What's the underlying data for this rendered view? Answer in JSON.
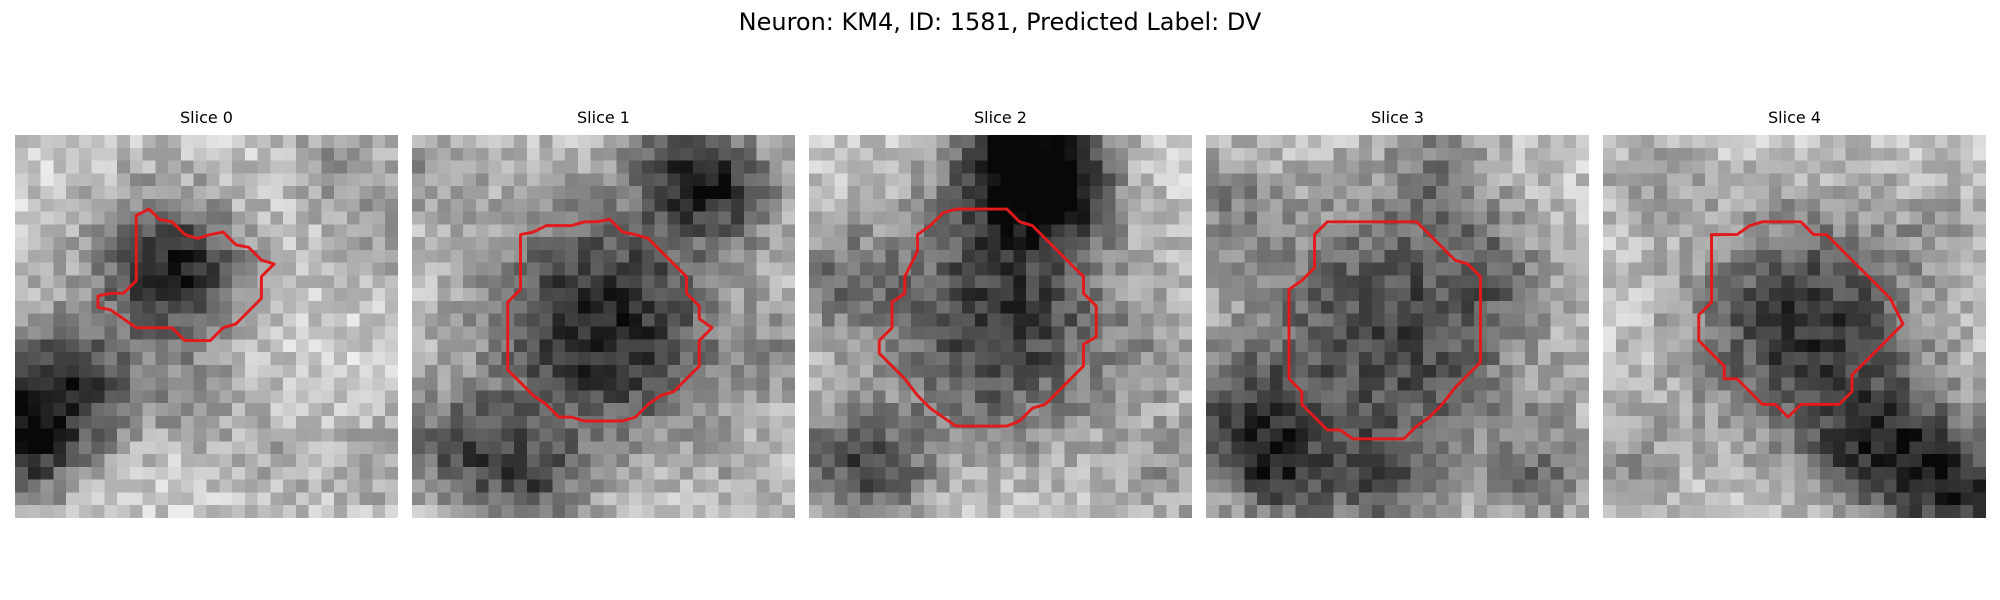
{
  "figure": {
    "title": "Neuron: KM4, ID: 1581, Predicted Label: DV",
    "contour_color": "#e31a1c",
    "colormap": "gray"
  },
  "panels": [
    {
      "title": "Slice 0",
      "contour": [
        [
          9.5,
          6.3
        ],
        [
          10.5,
          5.8
        ],
        [
          11.3,
          6.6
        ],
        [
          12.3,
          6.8
        ],
        [
          13.3,
          7.8
        ],
        [
          14.3,
          8.1
        ],
        [
          15.3,
          7.8
        ],
        [
          16.3,
          7.6
        ],
        [
          17.3,
          8.6
        ],
        [
          18.3,
          8.8
        ],
        [
          19.3,
          9.8
        ],
        [
          20.3,
          10.1
        ],
        [
          19.3,
          11.1
        ],
        [
          19.3,
          12.8
        ],
        [
          18.3,
          13.8
        ],
        [
          17.3,
          14.8
        ],
        [
          16.3,
          15.1
        ],
        [
          15.3,
          16.1
        ],
        [
          14.3,
          16.1
        ],
        [
          13.3,
          16.1
        ],
        [
          12.3,
          15.1
        ],
        [
          11.3,
          15.1
        ],
        [
          9.5,
          15.1
        ],
        [
          8.5,
          14.4
        ],
        [
          7.5,
          13.7
        ],
        [
          6.5,
          13.5
        ],
        [
          6.5,
          12.6
        ],
        [
          7.5,
          12.4
        ],
        [
          8.5,
          12.4
        ],
        [
          9.5,
          11.4
        ],
        [
          9.5,
          9.0
        ]
      ]
    },
    {
      "title": "Slice 1",
      "contour": [
        [
          8.5,
          7.8
        ],
        [
          9.5,
          7.6
        ],
        [
          10.5,
          7.1
        ],
        [
          12.5,
          7.1
        ],
        [
          13.5,
          6.8
        ],
        [
          14.5,
          6.8
        ],
        [
          15.5,
          6.6
        ],
        [
          16.5,
          7.6
        ],
        [
          17.5,
          7.8
        ],
        [
          18.5,
          8.1
        ],
        [
          19.5,
          9.1
        ],
        [
          20.5,
          10.1
        ],
        [
          21.5,
          11.1
        ],
        [
          21.5,
          12.4
        ],
        [
          22.5,
          13.4
        ],
        [
          22.5,
          14.4
        ],
        [
          23.5,
          15.1
        ],
        [
          22.5,
          16.1
        ],
        [
          22.5,
          18.1
        ],
        [
          21.5,
          19.1
        ],
        [
          20.5,
          20.1
        ],
        [
          19.5,
          20.4
        ],
        [
          18.5,
          21.1
        ],
        [
          17.5,
          22.1
        ],
        [
          16.5,
          22.4
        ],
        [
          13.5,
          22.4
        ],
        [
          12.5,
          22.1
        ],
        [
          11.5,
          22.1
        ],
        [
          10.5,
          21.1
        ],
        [
          9.5,
          20.4
        ],
        [
          8.5,
          19.4
        ],
        [
          7.5,
          18.4
        ],
        [
          7.5,
          16.1
        ],
        [
          7.5,
          13.1
        ],
        [
          8.5,
          12.1
        ],
        [
          8.5,
          9.4
        ]
      ]
    },
    {
      "title": "Slice 2",
      "contour": [
        [
          8.5,
          7.8
        ],
        [
          9.5,
          7.1
        ],
        [
          10.5,
          6.1
        ],
        [
          11.5,
          5.8
        ],
        [
          15.5,
          5.8
        ],
        [
          16.5,
          6.8
        ],
        [
          17.5,
          7.1
        ],
        [
          18.5,
          8.1
        ],
        [
          19.5,
          9.1
        ],
        [
          20.5,
          10.1
        ],
        [
          21.5,
          11.1
        ],
        [
          21.5,
          12.4
        ],
        [
          22.5,
          13.4
        ],
        [
          22.5,
          15.8
        ],
        [
          21.5,
          16.4
        ],
        [
          21.5,
          18.1
        ],
        [
          20.5,
          19.1
        ],
        [
          19.5,
          20.1
        ],
        [
          18.5,
          21.1
        ],
        [
          17.5,
          21.4
        ],
        [
          16.5,
          22.4
        ],
        [
          15.5,
          22.8
        ],
        [
          11.5,
          22.8
        ],
        [
          10.5,
          22.1
        ],
        [
          9.5,
          21.4
        ],
        [
          8.5,
          20.4
        ],
        [
          7.5,
          19.1
        ],
        [
          6.5,
          18.1
        ],
        [
          5.5,
          17.1
        ],
        [
          5.5,
          16.1
        ],
        [
          6.5,
          15.1
        ],
        [
          6.5,
          13.1
        ],
        [
          7.5,
          12.4
        ],
        [
          7.5,
          11.1
        ],
        [
          8.5,
          9.1
        ]
      ]
    },
    {
      "title": "Slice 3",
      "contour": [
        [
          8.5,
          7.8
        ],
        [
          9.5,
          6.8
        ],
        [
          10.5,
          6.8
        ],
        [
          11.5,
          6.8
        ],
        [
          16.5,
          6.8
        ],
        [
          17.5,
          7.8
        ],
        [
          18.5,
          8.8
        ],
        [
          19.5,
          9.8
        ],
        [
          20.5,
          10.1
        ],
        [
          21.5,
          11.1
        ],
        [
          21.5,
          17.8
        ],
        [
          20.5,
          18.8
        ],
        [
          19.5,
          19.8
        ],
        [
          18.5,
          21.1
        ],
        [
          17.5,
          22.1
        ],
        [
          16.5,
          22.8
        ],
        [
          15.5,
          23.8
        ],
        [
          11.5,
          23.8
        ],
        [
          10.5,
          23.1
        ],
        [
          9.5,
          23.1
        ],
        [
          8.5,
          22.1
        ],
        [
          7.5,
          21.1
        ],
        [
          7.5,
          20.1
        ],
        [
          6.5,
          19.1
        ],
        [
          6.5,
          18.1
        ],
        [
          6.5,
          12.1
        ],
        [
          7.5,
          11.4
        ],
        [
          8.5,
          10.4
        ],
        [
          8.5,
          9.4
        ]
      ]
    },
    {
      "title": "Slice 4",
      "contour": [
        [
          8.5,
          7.8
        ],
        [
          9.5,
          7.8
        ],
        [
          10.5,
          7.8
        ],
        [
          11.5,
          7.1
        ],
        [
          12.5,
          6.8
        ],
        [
          13.5,
          6.8
        ],
        [
          14.5,
          6.8
        ],
        [
          15.5,
          6.8
        ],
        [
          16.5,
          7.8
        ],
        [
          17.5,
          7.8
        ],
        [
          18.5,
          8.8
        ],
        [
          19.5,
          9.8
        ],
        [
          20.5,
          10.8
        ],
        [
          21.5,
          11.8
        ],
        [
          22.5,
          12.8
        ],
        [
          23.5,
          14.8
        ],
        [
          22.5,
          15.8
        ],
        [
          21.5,
          16.8
        ],
        [
          20.5,
          17.8
        ],
        [
          19.5,
          18.8
        ],
        [
          19.5,
          20.1
        ],
        [
          18.5,
          21.1
        ],
        [
          15.5,
          21.1
        ],
        [
          14.5,
          22.1
        ],
        [
          13.5,
          21.1
        ],
        [
          12.5,
          21.1
        ],
        [
          11.5,
          20.1
        ],
        [
          10.5,
          19.1
        ],
        [
          9.5,
          19.1
        ],
        [
          9.5,
          18.1
        ],
        [
          8.5,
          17.1
        ],
        [
          7.5,
          16.1
        ],
        [
          7.5,
          14.1
        ],
        [
          8.5,
          13.1
        ],
        [
          8.5,
          10.1
        ]
      ]
    }
  ]
}
